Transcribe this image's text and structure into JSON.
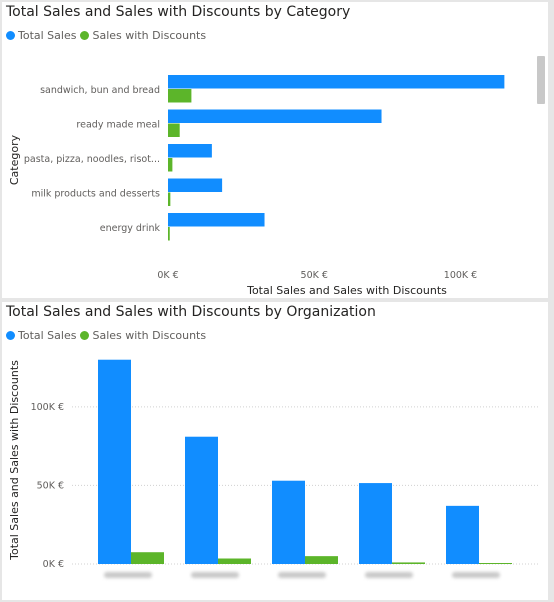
{
  "colors": {
    "total": "#118DFF",
    "discount": "#5CB52A"
  },
  "chart_data": [
    {
      "type": "bar",
      "orientation": "horizontal",
      "title": "Total Sales and Sales with Discounts by Category",
      "xlabel": "Total Sales and Sales with Discounts",
      "ylabel": "Category",
      "legend": "top-left",
      "categories": [
        "sandwich, bun and bread",
        "ready made meal",
        "pasta, pizza, noodles, risot...",
        "milk products and desserts",
        "energy drink"
      ],
      "series": [
        {
          "name": "Total Sales",
          "values": [
            115000,
            73000,
            15000,
            18500,
            33000
          ]
        },
        {
          "name": "Sales with Discounts",
          "values": [
            8000,
            4000,
            1500,
            800,
            600
          ]
        }
      ],
      "xlim": [
        0,
        120000
      ],
      "xticks": [
        0,
        50000,
        100000
      ],
      "xtick_labels": [
        "0K €",
        "50K €",
        "100K €"
      ]
    },
    {
      "type": "bar",
      "orientation": "vertical",
      "title": "Total Sales and Sales with Discounts by Organization",
      "xlabel": "",
      "ylabel": "Total Sales and Sales with Discounts",
      "legend": "top-left",
      "categories": [
        "",
        "",
        "",
        "",
        ""
      ],
      "series": [
        {
          "name": "Total Sales",
          "values": [
            130000,
            81000,
            53000,
            51500,
            37000
          ]
        },
        {
          "name": "Sales with Discounts",
          "values": [
            7500,
            3500,
            5000,
            1000,
            0
          ]
        }
      ],
      "ylim": [
        0,
        140000
      ],
      "yticks": [
        0,
        50000,
        100000
      ],
      "ytick_labels": [
        "0K €",
        "50K €",
        "100K €"
      ]
    }
  ]
}
